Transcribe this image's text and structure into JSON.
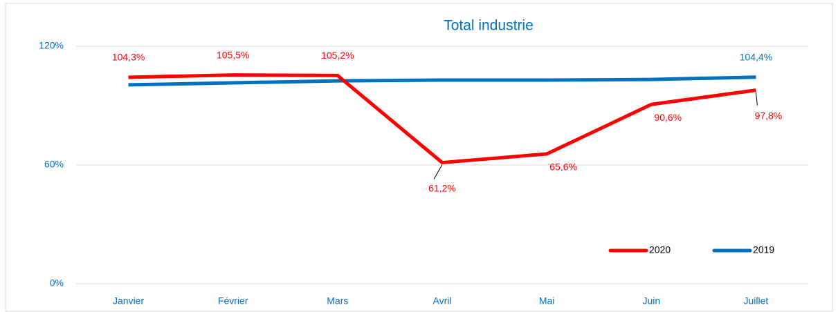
{
  "chart_data": {
    "type": "line",
    "title": "Total industrie",
    "categories": [
      "Janvier",
      "Février",
      "Mars",
      "Avril",
      "Mai",
      "Juin",
      "Juillet"
    ],
    "series": [
      {
        "name": "2020",
        "color": "#ff0000",
        "values": [
          104.3,
          105.5,
          105.2,
          61.2,
          65.6,
          90.6,
          97.8
        ],
        "value_labels": [
          "104,3%",
          "105,5%",
          "105,2%",
          "61,2%",
          "65,6%",
          "90,6%",
          "97,8%"
        ]
      },
      {
        "name": "2019",
        "color": "#0070c0",
        "values": [
          100.5,
          101.5,
          102.5,
          102.9,
          102.9,
          103.2,
          104.4
        ],
        "value_labels": [
          null,
          null,
          null,
          null,
          null,
          null,
          "104,4%"
        ]
      }
    ],
    "ylim": [
      0,
      120
    ],
    "yticks": [
      {
        "value": 0,
        "label": "0%"
      },
      {
        "value": 60,
        "label": "60%"
      },
      {
        "value": 120,
        "label": "120%"
      }
    ],
    "grid": true,
    "legend": "bottom-right"
  }
}
